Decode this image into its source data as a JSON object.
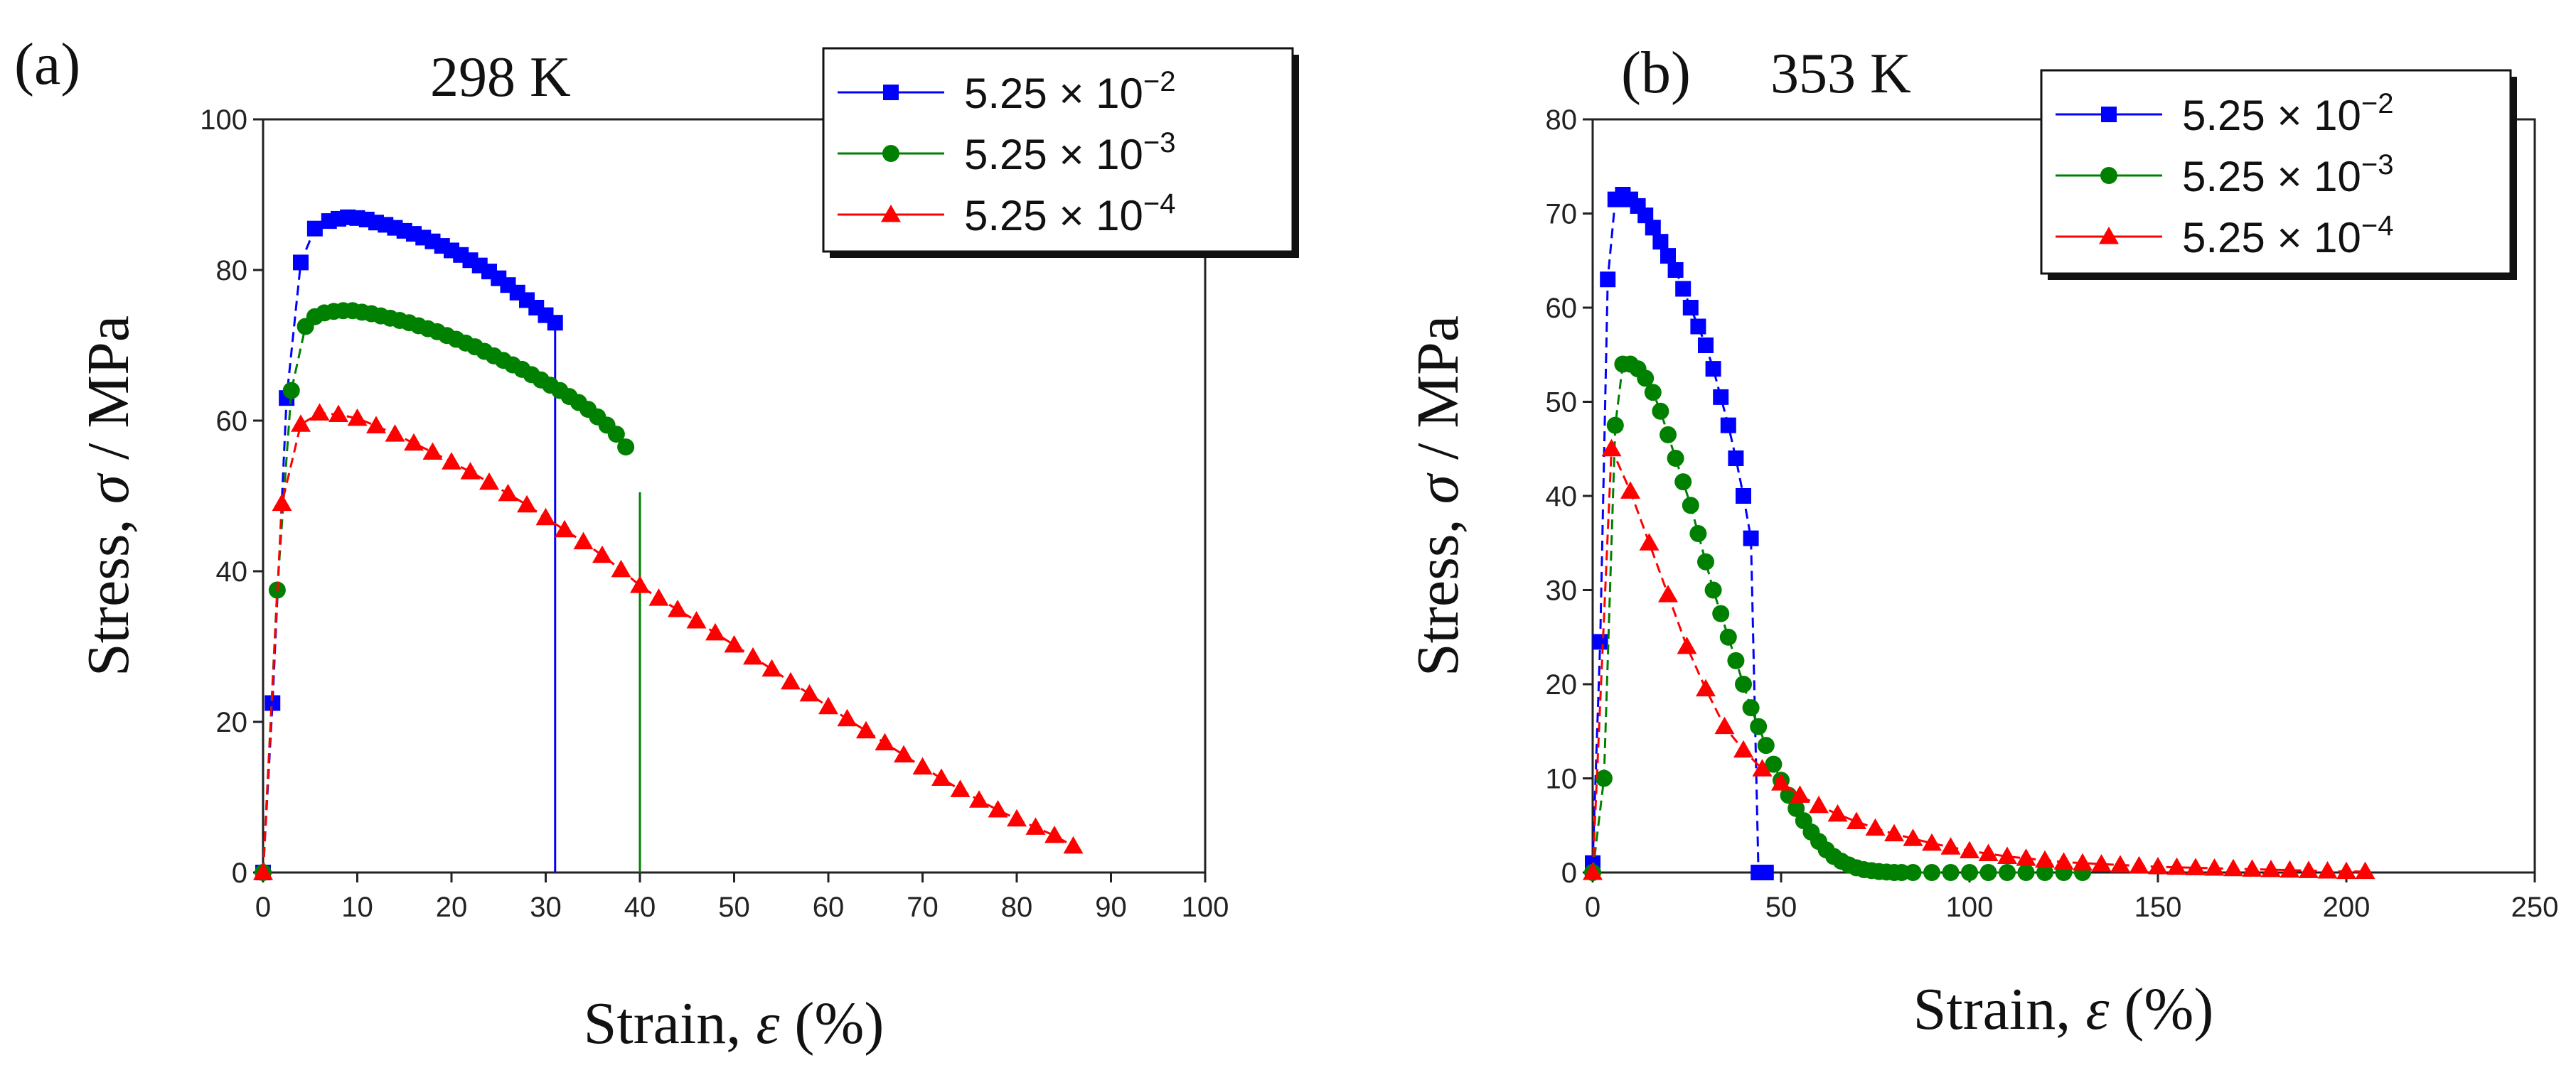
{
  "chart_data": [
    {
      "type": "line",
      "panel_label": "(a)",
      "title": "298 K",
      "xlabel_prefix": "Strain, ",
      "xlabel_symbol": "ε",
      "xlabel_suffix": " (%)",
      "ylabel_prefix": "Stress, ",
      "ylabel_symbol": "σ",
      "ylabel_suffix": " / MPa",
      "xlim": [
        0,
        100
      ],
      "ylim": [
        0,
        100
      ],
      "xticks": [
        0,
        10,
        20,
        30,
        40,
        50,
        60,
        70,
        80,
        90,
        100
      ],
      "yticks": [
        0,
        20,
        40,
        60,
        80,
        100
      ],
      "grid": false,
      "legend": "top-right",
      "series": [
        {
          "name": "5.25 × 10⁻²",
          "name_base": "5.25",
          "name_exp": "−2",
          "color": "#0000ff",
          "marker": "square",
          "x": [
            0,
            1,
            2.5,
            4,
            5.5,
            7,
            8,
            9,
            10,
            11,
            12,
            13,
            14,
            15,
            16,
            17,
            18,
            19,
            20,
            21,
            22,
            23,
            24,
            25,
            26,
            27,
            28,
            29,
            30,
            31
          ],
          "y": [
            0,
            22.5,
            63,
            81,
            85.5,
            86.5,
            86.8,
            87,
            86.9,
            86.7,
            86.3,
            86,
            85.6,
            85.2,
            84.8,
            84.3,
            83.8,
            83.2,
            82.6,
            82,
            81.3,
            80.6,
            79.8,
            78.9,
            78,
            77,
            76,
            75,
            74,
            73
          ],
          "drop_x": 31
        },
        {
          "name": "5.25 × 10⁻³",
          "name_base": "5.25",
          "name_exp": "−3",
          "color": "#008000",
          "marker": "circle",
          "x": [
            0,
            1.5,
            3,
            4.5,
            5.5,
            6.5,
            7.5,
            8.5,
            9.5,
            10.5,
            11.5,
            12.5,
            13.5,
            14.5,
            15.5,
            16.5,
            17.5,
            18.5,
            19.5,
            20.5,
            21.5,
            22.5,
            23.5,
            24.5,
            25.5,
            26.5,
            27.5,
            28.5,
            29.5,
            30.5,
            31.5,
            32.5,
            33.5,
            34.5,
            35.5,
            36.5,
            37.5,
            38.5
          ],
          "y": [
            0,
            37.5,
            64,
            72.5,
            73.8,
            74.3,
            74.5,
            74.6,
            74.6,
            74.4,
            74.2,
            73.9,
            73.6,
            73.3,
            73,
            72.6,
            72.2,
            71.8,
            71.3,
            70.8,
            70.3,
            69.8,
            69.2,
            68.6,
            68,
            67.4,
            66.8,
            66.1,
            65.4,
            64.7,
            64,
            63.2,
            62.4,
            61.5,
            60.5,
            59.4,
            58.2,
            56.5
          ],
          "drop_x": 40,
          "drop_top": 50.5
        },
        {
          "name": "5.25 × 10⁻⁴",
          "name_base": "5.25",
          "name_exp": "−4",
          "color": "#ff0000",
          "marker": "triangle",
          "x": [
            0,
            2,
            4,
            6,
            8,
            10,
            12,
            14,
            16,
            18,
            20,
            22,
            24,
            26,
            28,
            30,
            32,
            34,
            36,
            38,
            40,
            42,
            44,
            46,
            48,
            50,
            52,
            54,
            56,
            58,
            60,
            62,
            64,
            66,
            68,
            70,
            72,
            74,
            76,
            78,
            80,
            82,
            84,
            86
          ],
          "y": [
            0,
            49,
            59.5,
            61,
            60.8,
            60.3,
            59.3,
            58.2,
            57,
            55.8,
            54.5,
            53.2,
            51.8,
            50.3,
            48.8,
            47.1,
            45.5,
            43.9,
            42.1,
            40.2,
            38.1,
            36.4,
            34.9,
            33.4,
            31.8,
            30.2,
            28.6,
            27,
            25.3,
            23.7,
            22,
            20.4,
            18.8,
            17.2,
            15.6,
            14,
            12.5,
            11,
            9.6,
            8.3,
            7.1,
            6,
            4.9,
            3.5
          ]
        }
      ]
    },
    {
      "type": "line",
      "panel_label": "(b)",
      "title": "353 K",
      "xlabel_prefix": "Strain, ",
      "xlabel_symbol": "ε",
      "xlabel_suffix": " (%)",
      "ylabel_prefix": "Stress, ",
      "ylabel_symbol": "σ",
      "ylabel_suffix": " / MPa",
      "xlim": [
        0,
        250
      ],
      "ylim": [
        0,
        80
      ],
      "xticks": [
        0,
        50,
        100,
        150,
        200,
        250
      ],
      "yticks": [
        0,
        10,
        20,
        30,
        40,
        50,
        60,
        70,
        80
      ],
      "grid": false,
      "legend": "top-right",
      "series": [
        {
          "name": "5.25 × 10⁻²",
          "name_base": "5.25",
          "name_exp": "−2",
          "color": "#0000ff",
          "marker": "square",
          "x": [
            0,
            2,
            4,
            6,
            8,
            10,
            12,
            14,
            16,
            18,
            20,
            22,
            24,
            26,
            28,
            30,
            32,
            34,
            36,
            38,
            40,
            42,
            44,
            46
          ],
          "y": [
            1,
            24.5,
            63,
            71.5,
            72,
            71.5,
            70.8,
            69.8,
            68.5,
            67,
            65.5,
            64,
            62,
            60,
            58,
            56,
            53.5,
            50.5,
            47.5,
            44,
            40,
            35.5,
            0,
            0
          ],
          "drop_x": 46
        },
        {
          "name": "5.25 × 10⁻³",
          "name_base": "5.25",
          "name_exp": "−3",
          "color": "#008000",
          "marker": "circle",
          "x": [
            0,
            3,
            6,
            8,
            10,
            12,
            14,
            16,
            18,
            20,
            22,
            24,
            26,
            28,
            30,
            32,
            34,
            36,
            38,
            40,
            42,
            44,
            46,
            48,
            50,
            52,
            54,
            56,
            58,
            60,
            62,
            64,
            66,
            68,
            70,
            72,
            74,
            76,
            78,
            80,
            82,
            85,
            90,
            95,
            100,
            105,
            110,
            115,
            120,
            125,
            130
          ],
          "y": [
            0,
            10,
            47.5,
            54,
            54,
            53.5,
            52.5,
            51,
            49,
            46.5,
            44,
            41.5,
            39,
            36,
            33,
            30,
            27.5,
            25,
            22.5,
            20,
            17.5,
            15.5,
            13.5,
            11.5,
            9.8,
            8.2,
            6.8,
            5.5,
            4.3,
            3.3,
            2.4,
            1.7,
            1.2,
            0.8,
            0.5,
            0.3,
            0.2,
            0.1,
            0.05,
            0,
            0,
            0,
            0,
            0,
            0,
            0,
            0,
            0,
            0,
            0,
            0
          ]
        },
        {
          "name": "5.25 × 10⁻⁴",
          "name_base": "5.25",
          "name_exp": "−4",
          "color": "#ff0000",
          "marker": "triangle",
          "x": [
            0,
            5,
            10,
            15,
            20,
            25,
            30,
            35,
            40,
            45,
            50,
            55,
            60,
            65,
            70,
            75,
            80,
            85,
            90,
            95,
            100,
            105,
            110,
            115,
            120,
            125,
            130,
            135,
            140,
            145,
            150,
            155,
            160,
            165,
            170,
            175,
            180,
            185,
            190,
            195,
            200,
            205
          ],
          "y": [
            0,
            45,
            40.5,
            35,
            29.5,
            24,
            19.5,
            15.5,
            13,
            11,
            9.5,
            8.2,
            7.1,
            6.2,
            5.4,
            4.7,
            4.1,
            3.6,
            3.1,
            2.7,
            2.3,
            2.0,
            1.7,
            1.5,
            1.3,
            1.1,
            1.0,
            0.9,
            0.8,
            0.7,
            0.6,
            0.55,
            0.5,
            0.45,
            0.4,
            0.35,
            0.3,
            0.25,
            0.2,
            0.15,
            0.1,
            0.1
          ]
        }
      ]
    }
  ]
}
